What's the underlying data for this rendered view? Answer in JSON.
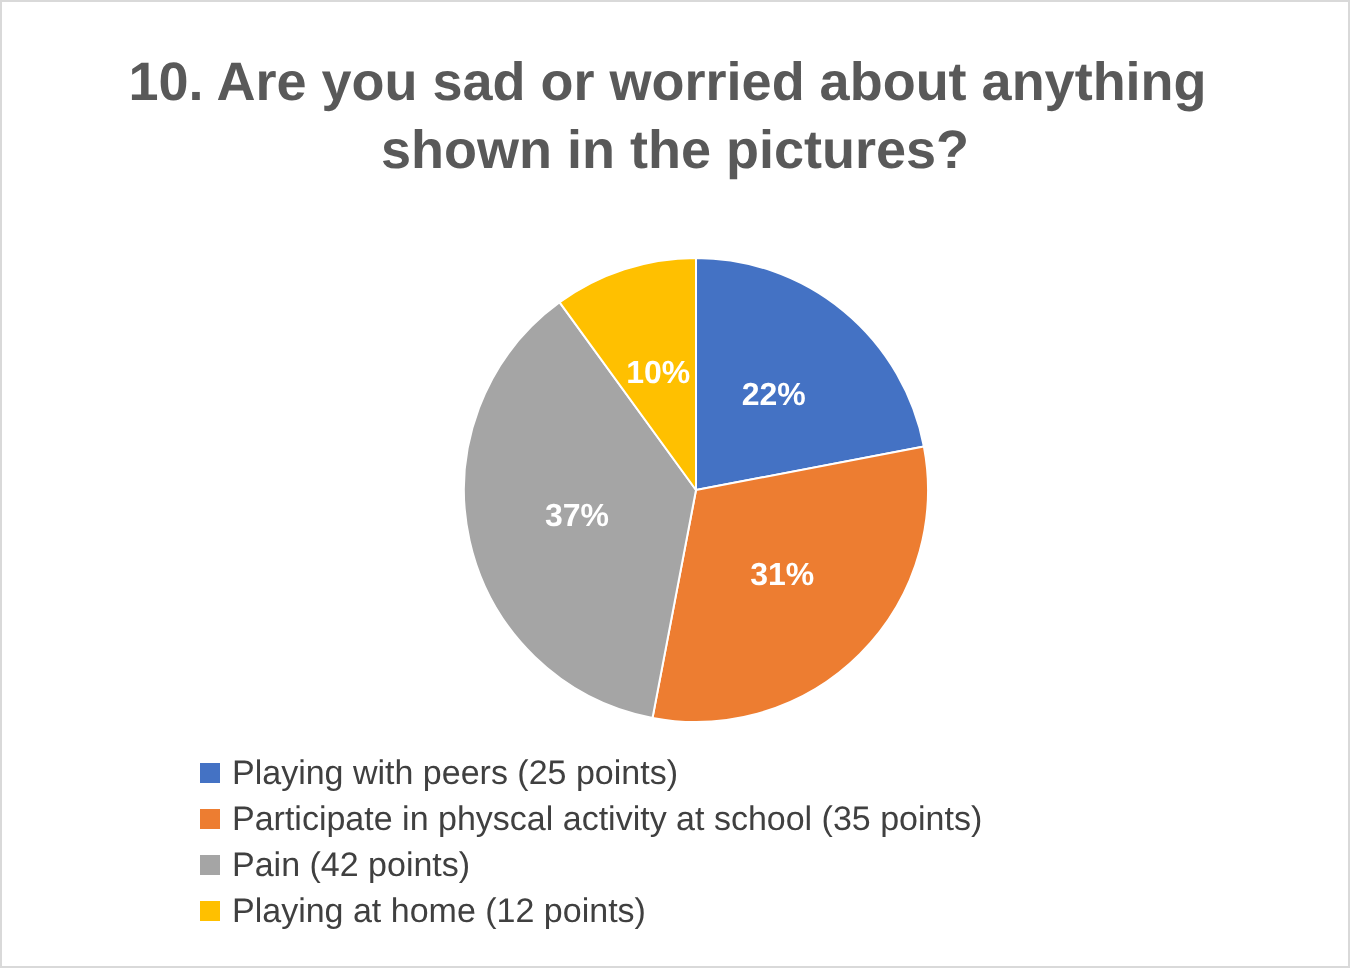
{
  "chart_data": {
    "type": "pie",
    "title": "10. Are you sad or worried about anything shown in the pictures?",
    "categories": [
      "Playing with peers (25 points)",
      "Participate in physcal activity at school (35 points)",
      "Pain (42 points)",
      "Playing at home (12 points)"
    ],
    "values": [
      22,
      31,
      37,
      10
    ],
    "colors": [
      "#4472c4",
      "#ed7d31",
      "#a5a5a5",
      "#ffc000"
    ],
    "value_labels": [
      "22%",
      "31%",
      "37%",
      "10%"
    ],
    "legend": "bottom"
  }
}
